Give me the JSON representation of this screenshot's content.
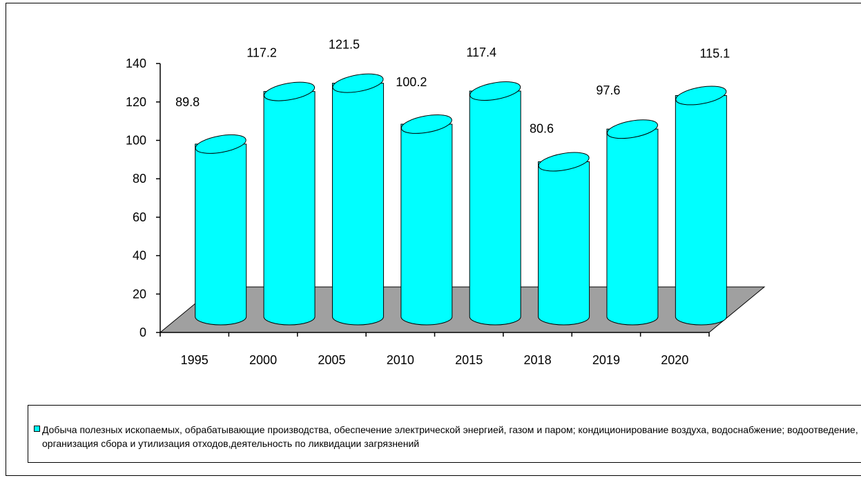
{
  "chart_data": {
    "type": "bar",
    "categories": [
      "1995",
      "2000",
      "2005",
      "2010",
      "2015",
      "2018",
      "2019",
      "2020"
    ],
    "series": [
      {
        "name": "Добыча полезных ископаемых, обрабатывающие производства, обеспечение электрической энергией, газом и паром; кондиционирование воздуха, водоснабжение; водоотведение, организация сбора и утилизация отходов,деятельность по ликвидации загрязнений",
        "values": [
          89.8,
          117.2,
          121.5,
          100.2,
          117.4,
          80.6,
          97.6,
          115.1
        ],
        "color": "#00FFFF"
      }
    ],
    "y_ticks": [
      "0",
      "20",
      "40",
      "60",
      "80",
      "100",
      "120",
      "140"
    ],
    "ylim": [
      0,
      140
    ],
    "style": "3d-cylinder",
    "floor_color": "#A0A0A0",
    "grid": false,
    "legend_position": "bottom"
  }
}
